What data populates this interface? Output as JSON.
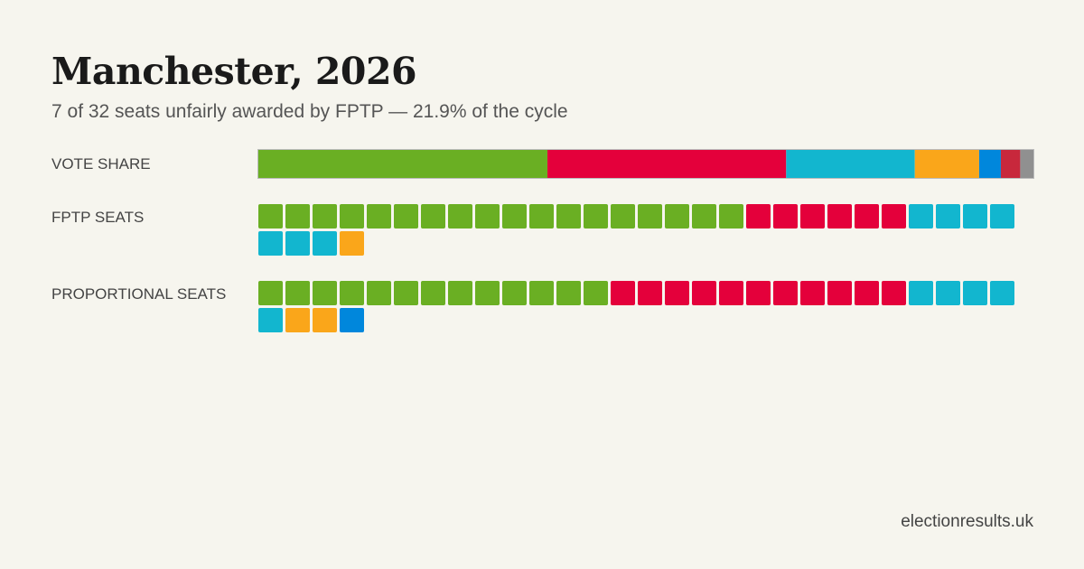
{
  "title": "Manchester, 2026",
  "subtitle": "7 of 32 seats unfairly awarded by FPTP — 21.9% of the cycle",
  "footer": "electionresults.uk",
  "parties": {
    "green": "#6aaf23",
    "red": "#e4003b",
    "cyan": "#12b6cf",
    "orange": "#faa61a",
    "blue": "#0087dc",
    "darkred": "#c8283c",
    "grey": "#909090"
  },
  "chart_data": {
    "type": "bar",
    "rows": [
      {
        "label": "VOTE SHARE",
        "kind": "stacked-bar",
        "segments": [
          {
            "party": "green",
            "value": 37.3
          },
          {
            "party": "red",
            "value": 30.8
          },
          {
            "party": "cyan",
            "value": 16.6
          },
          {
            "party": "orange",
            "value": 8.3
          },
          {
            "party": "blue",
            "value": 2.8
          },
          {
            "party": "darkred",
            "value": 2.5
          },
          {
            "party": "grey",
            "value": 1.7
          }
        ]
      },
      {
        "label": "FPTP SEATS",
        "kind": "seats",
        "seats": [
          {
            "party": "green",
            "count": 18
          },
          {
            "party": "red",
            "count": 6
          },
          {
            "party": "cyan",
            "count": 7
          },
          {
            "party": "orange",
            "count": 1
          }
        ]
      },
      {
        "label": "PROPORTIONAL SEATS",
        "kind": "seats",
        "seats": [
          {
            "party": "green",
            "count": 13
          },
          {
            "party": "red",
            "count": 11
          },
          {
            "party": "cyan",
            "count": 5
          },
          {
            "party": "orange",
            "count": 2
          },
          {
            "party": "blue",
            "count": 1
          }
        ]
      }
    ]
  }
}
